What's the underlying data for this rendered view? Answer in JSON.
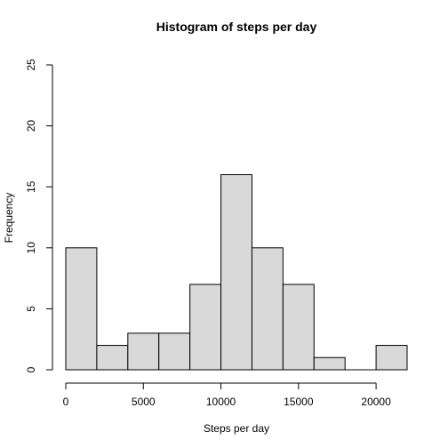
{
  "chart_data": {
    "type": "bar",
    "title": "Histogram of steps per day",
    "xlabel": "Steps per day",
    "ylabel": "Frequency",
    "bins": [
      {
        "from": 0,
        "to": 2000,
        "count": 10
      },
      {
        "from": 2000,
        "to": 4000,
        "count": 2
      },
      {
        "from": 4000,
        "to": 6000,
        "count": 3
      },
      {
        "from": 6000,
        "to": 8000,
        "count": 3
      },
      {
        "from": 8000,
        "to": 10000,
        "count": 7
      },
      {
        "from": 10000,
        "to": 12000,
        "count": 16
      },
      {
        "from": 12000,
        "to": 14000,
        "count": 10
      },
      {
        "from": 14000,
        "to": 16000,
        "count": 7
      },
      {
        "from": 16000,
        "to": 18000,
        "count": 1
      },
      {
        "from": 18000,
        "to": 20000,
        "count": 0
      },
      {
        "from": 20000,
        "to": 22000,
        "count": 2
      }
    ],
    "xlim": [
      0,
      22000
    ],
    "ylim": [
      0,
      25
    ],
    "xticks": [
      "0",
      "5000",
      "10000",
      "15000",
      "20000"
    ],
    "yticks": [
      "0",
      "5",
      "10",
      "15",
      "20",
      "25"
    ],
    "grid": false,
    "bar_color": "#d9d9d9",
    "edge_color": "#000000"
  }
}
